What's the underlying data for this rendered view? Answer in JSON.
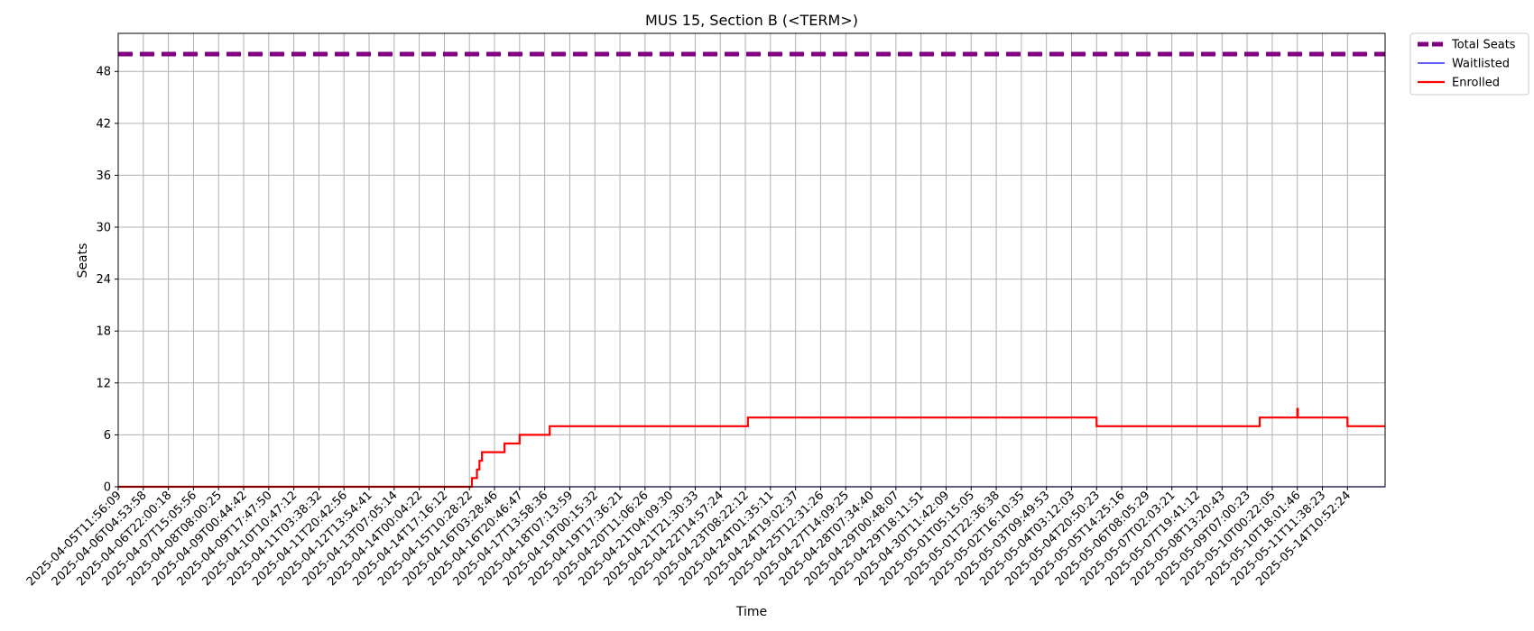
{
  "chart_data": {
    "type": "line",
    "title": "MUS 15, Section B (<TERM>)",
    "xlabel": "Time",
    "ylabel": "Seats",
    "ylim": [
      0,
      52.4
    ],
    "yticks": [
      0,
      6,
      12,
      18,
      24,
      30,
      36,
      42,
      48
    ],
    "grid": true,
    "legend_position": "outside-top-right",
    "x_ticks": [
      "2025-04-05T11:56:09",
      "2025-04-06T04:53:58",
      "2025-04-06T22:00:18",
      "2025-04-07T15:05:56",
      "2025-04-08T08:00:25",
      "2025-04-09T00:44:42",
      "2025-04-09T17:47:50",
      "2025-04-10T10:47:12",
      "2025-04-11T03:38:32",
      "2025-04-11T20:42:56",
      "2025-04-12T13:54:41",
      "2025-04-13T07:05:14",
      "2025-04-14T00:04:22",
      "2025-04-14T17:16:12",
      "2025-04-15T10:28:22",
      "2025-04-16T03:28:46",
      "2025-04-16T20:46:47",
      "2025-04-17T13:58:36",
      "2025-04-18T07:13:59",
      "2025-04-19T00:15:32",
      "2025-04-19T17:36:21",
      "2025-04-20T11:06:26",
      "2025-04-21T04:09:30",
      "2025-04-21T21:30:33",
      "2025-04-22T14:57:24",
      "2025-04-23T08:22:12",
      "2025-04-24T01:35:11",
      "2025-04-24T19:02:37",
      "2025-04-25T12:31:26",
      "2025-04-27T14:09:25",
      "2025-04-28T07:34:40",
      "2025-04-29T00:48:07",
      "2025-04-29T18:11:51",
      "2025-04-30T11:42:09",
      "2025-05-01T05:15:05",
      "2025-05-01T22:36:38",
      "2025-05-02T16:10:35",
      "2025-05-03T09:49:53",
      "2025-05-04T03:12:03",
      "2025-05-04T20:50:23",
      "2025-05-05T14:25:16",
      "2025-05-06T08:05:29",
      "2025-05-07T02:03:21",
      "2025-05-07T19:41:12",
      "2025-05-08T13:20:43",
      "2025-05-09T07:00:23",
      "2025-05-10T00:22:05",
      "2025-05-10T18:01:46",
      "2025-05-11T11:38:23",
      "2025-05-14T10:52:24"
    ],
    "x_extent": [
      0,
      50.5
    ],
    "series": [
      {
        "name": "Total Seats",
        "color": "#800080",
        "style": "dashed",
        "points": [
          [
            0,
            50
          ],
          [
            50.5,
            50
          ]
        ]
      },
      {
        "name": "Waitlisted",
        "color": "#0000ff",
        "style": "solid",
        "points": [
          [
            0,
            0
          ],
          [
            50.5,
            0
          ]
        ]
      },
      {
        "name": "Enrolled",
        "color": "#ff0000",
        "style": "step",
        "points": [
          [
            0,
            0
          ],
          [
            14.1,
            0
          ],
          [
            14.1,
            1
          ],
          [
            14.3,
            1
          ],
          [
            14.3,
            2
          ],
          [
            14.4,
            2
          ],
          [
            14.4,
            3
          ],
          [
            14.5,
            3
          ],
          [
            14.5,
            4
          ],
          [
            15.4,
            4
          ],
          [
            15.4,
            5
          ],
          [
            16.0,
            5
          ],
          [
            16.0,
            6
          ],
          [
            17.2,
            6
          ],
          [
            17.2,
            7
          ],
          [
            25.1,
            7
          ],
          [
            25.1,
            8
          ],
          [
            39.0,
            8
          ],
          [
            39.0,
            7
          ],
          [
            45.5,
            7
          ],
          [
            45.5,
            8
          ],
          [
            47.0,
            8
          ],
          [
            47.0,
            9
          ],
          [
            47.02,
            9
          ],
          [
            47.02,
            8
          ],
          [
            49.0,
            8
          ],
          [
            49.0,
            7
          ],
          [
            50.5,
            7
          ]
        ]
      }
    ]
  }
}
